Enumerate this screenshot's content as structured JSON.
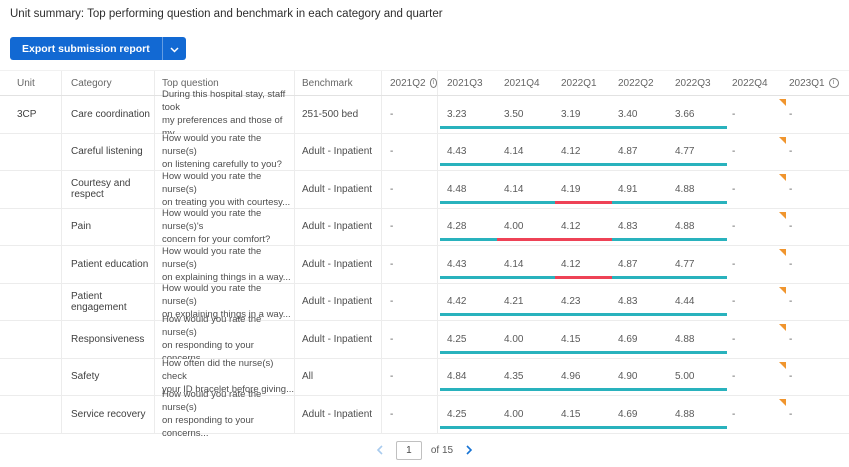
{
  "title": "Unit summary: Top performing question and benchmark in each category and quarter",
  "toolbar": {
    "export_label": "Export submission report"
  },
  "colors": {
    "accent_blue": "#1269d3",
    "teal": "#29b2bd",
    "red": "#ee4256",
    "flag_orange": "#f0952e",
    "chevron_disabled": "#a8cbee",
    "chevron_enabled": "#1673d4"
  },
  "table": {
    "columns": [
      {
        "label": "Unit",
        "info": false
      },
      {
        "label": "Category",
        "info": false
      },
      {
        "label": "Top question",
        "info": false
      },
      {
        "label": "Benchmark",
        "info": false
      },
      {
        "label": "2021Q2",
        "info": true
      },
      {
        "label": "2021Q3",
        "info": false
      },
      {
        "label": "2021Q4",
        "info": false
      },
      {
        "label": "2022Q1",
        "info": false
      },
      {
        "label": "2022Q2",
        "info": false
      },
      {
        "label": "2022Q3",
        "info": false
      },
      {
        "label": "2022Q4",
        "info": false
      },
      {
        "label": "2023Q1",
        "info": true
      }
    ],
    "rows": [
      {
        "unit": "3CP",
        "category": "Care coordination",
        "question": [
          "During this hospital stay, staff took",
          "my preferences and those of my..."
        ],
        "benchmark": "251-500 bed",
        "values": [
          "-",
          "3.23",
          "3.50",
          "3.19",
          "3.40",
          "3.66",
          "-",
          "-"
        ],
        "bar": [
          "teal",
          "teal",
          "teal",
          "teal",
          "teal"
        ],
        "flag": true
      },
      {
        "unit": "",
        "category": "Careful listening",
        "question": [
          "How would you rate the nurse(s)",
          "on listening carefully to you?"
        ],
        "benchmark": "Adult - Inpatient",
        "values": [
          "-",
          "4.43",
          "4.14",
          "4.12",
          "4.87",
          "4.77",
          "-",
          "-"
        ],
        "bar": [
          "teal",
          "teal",
          "teal",
          "teal",
          "teal"
        ],
        "flag": true
      },
      {
        "unit": "",
        "category": "Courtesy and respect",
        "question": [
          "How would you rate the nurse(s)",
          "on treating you with courtesy..."
        ],
        "benchmark": "Adult - Inpatient",
        "values": [
          "-",
          "4.48",
          "4.14",
          "4.19",
          "4.91",
          "4.88",
          "-",
          "-"
        ],
        "bar": [
          "teal",
          "teal",
          "red",
          "teal",
          "teal"
        ],
        "flag": true
      },
      {
        "unit": "",
        "category": "Pain",
        "question": [
          "How would you rate the nurse(s)'s",
          "concern for your comfort?"
        ],
        "benchmark": "Adult - Inpatient",
        "values": [
          "-",
          "4.28",
          "4.00",
          "4.12",
          "4.83",
          "4.88",
          "-",
          "-"
        ],
        "bar": [
          "teal",
          "red",
          "red",
          "teal",
          "teal"
        ],
        "flag": true
      },
      {
        "unit": "",
        "category": "Patient education",
        "question": [
          "How would you rate the nurse(s)",
          "on explaining things in a way..."
        ],
        "benchmark": "Adult - Inpatient",
        "values": [
          "-",
          "4.43",
          "4.14",
          "4.12",
          "4.87",
          "4.77",
          "-",
          "-"
        ],
        "bar": [
          "teal",
          "teal",
          "red",
          "teal",
          "teal"
        ],
        "flag": true
      },
      {
        "unit": "",
        "category": "Patient engagement",
        "question": [
          "How would you rate the nurse(s)",
          "on explaining things in a way..."
        ],
        "benchmark": "Adult - Inpatient",
        "values": [
          "-",
          "4.42",
          "4.21",
          "4.23",
          "4.83",
          "4.44",
          "-",
          "-"
        ],
        "bar": [
          "teal",
          "teal",
          "teal",
          "teal",
          "teal"
        ],
        "flag": true
      },
      {
        "unit": "",
        "category": "Responsiveness",
        "question": [
          "How would you rate the nurse(s)",
          "on responding to your concerns..."
        ],
        "benchmark": "Adult - Inpatient",
        "values": [
          "-",
          "4.25",
          "4.00",
          "4.15",
          "4.69",
          "4.88",
          "-",
          "-"
        ],
        "bar": [
          "teal",
          "teal",
          "teal",
          "teal",
          "teal"
        ],
        "flag": true
      },
      {
        "unit": "",
        "category": "Safety",
        "question": [
          "How often did the nurse(s) check",
          "your ID bracelet before giving..."
        ],
        "benchmark": "All",
        "values": [
          "-",
          "4.84",
          "4.35",
          "4.96",
          "4.90",
          "5.00",
          "-",
          "-"
        ],
        "bar": [
          "teal",
          "teal",
          "teal",
          "teal",
          "teal"
        ],
        "flag": true
      },
      {
        "unit": "",
        "category": "Service recovery",
        "question": [
          "How would you rate the nurse(s)",
          "on responding to your concerns..."
        ],
        "benchmark": "Adult - Inpatient",
        "values": [
          "-",
          "4.25",
          "4.00",
          "4.15",
          "4.69",
          "4.88",
          "-",
          "-"
        ],
        "bar": [
          "teal",
          "teal",
          "teal",
          "teal",
          "teal"
        ],
        "flag": true
      }
    ]
  },
  "pagination": {
    "current_page": "1",
    "of_label": "of 15"
  }
}
